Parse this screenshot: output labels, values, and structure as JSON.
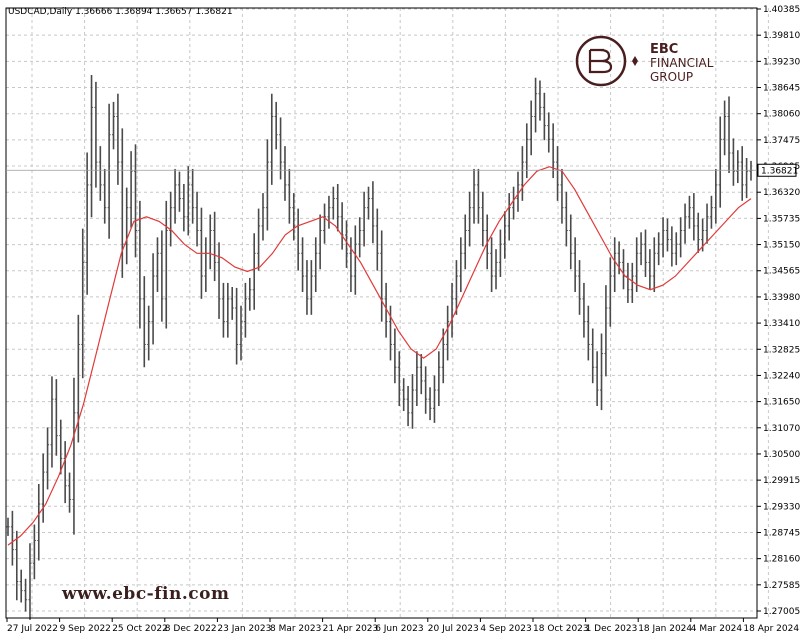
{
  "chart_data": {
    "type": "line",
    "title": "USDCAD,Daily  1.36666  1.36894  1.36657  1.36821",
    "ylim": [
      1.27,
      1.4038
    ],
    "grid": true,
    "y_ticks": [
      "1.40385",
      "1.39810",
      "1.39230",
      "1.38645",
      "1.38060",
      "1.37475",
      "1.36905",
      "1.36320",
      "1.35735",
      "1.35150",
      "1.34565",
      "1.33980",
      "1.33410",
      "1.32825",
      "1.32240",
      "1.31650",
      "1.31070",
      "1.30500",
      "1.29915",
      "1.29330",
      "1.28745",
      "1.28160",
      "1.27585",
      "1.27005"
    ],
    "x_ticks": [
      "27 Jul 2022",
      "9 Sep 2022",
      "25 Oct 2022",
      "8 Dec 2022",
      "23 Jan 2023",
      "8 Mar 2023",
      "21 Apr 2023",
      "6 Jun 2023",
      "20 Jul 2023",
      "4 Sep 2023",
      "18 Oct 2023",
      "1 Dec 2023",
      "18 Jan 2024",
      "4 Mar 2024",
      "18 Apr 2024"
    ],
    "current_price": "1.36821",
    "series": [
      {
        "style": "ohlc-bars",
        "color": "#4a4a4a",
        "values": [
          1.29,
          1.285,
          1.278,
          1.276,
          1.274,
          1.282,
          1.287,
          1.295,
          1.302,
          1.308,
          1.318,
          1.31,
          1.305,
          1.299,
          1.296,
          1.315,
          1.33,
          1.348,
          1.365,
          1.382,
          1.37,
          1.365,
          1.36,
          1.376,
          1.38,
          1.37,
          1.352,
          1.36,
          1.368,
          1.355,
          1.34,
          1.33,
          1.335,
          1.345,
          1.35,
          1.34,
          1.355,
          1.36,
          1.365,
          1.362,
          1.358,
          1.365,
          1.36,
          1.355,
          1.345,
          1.35,
          1.355,
          1.348,
          1.34,
          1.335,
          1.34,
          1.338,
          1.33,
          1.335,
          1.34,
          1.342,
          1.35,
          1.356,
          1.36,
          1.37,
          1.38,
          1.376,
          1.37,
          1.365,
          1.36,
          1.356,
          1.35,
          1.345,
          1.34,
          1.345,
          1.35,
          1.355,
          1.358,
          1.36,
          1.362,
          1.358,
          1.354,
          1.35,
          1.345,
          1.352,
          1.355,
          1.36,
          1.362,
          1.356,
          1.35,
          1.34,
          1.335,
          1.33,
          1.325,
          1.32,
          1.318,
          1.315,
          1.32,
          1.325,
          1.322,
          1.318,
          1.316,
          1.32,
          1.325,
          1.33,
          1.335,
          1.34,
          1.345,
          1.35,
          1.355,
          1.36,
          1.365,
          1.36,
          1.355,
          1.35,
          1.345,
          1.348,
          1.352,
          1.356,
          1.36,
          1.362,
          1.365,
          1.37,
          1.375,
          1.38,
          1.385,
          1.382,
          1.378,
          1.375,
          1.37,
          1.365,
          1.36,
          1.355,
          1.35,
          1.345,
          1.34,
          1.335,
          1.33,
          1.325,
          1.32,
          1.328,
          1.338,
          1.345,
          1.35,
          1.348,
          1.345,
          1.342,
          1.345,
          1.35,
          1.352,
          1.348,
          1.345,
          1.35,
          1.352,
          1.355,
          1.353,
          1.35,
          1.352,
          1.355,
          1.358,
          1.36,
          1.356,
          1.353,
          1.355,
          1.358,
          1.36,
          1.365,
          1.375,
          1.38,
          1.372,
          1.368,
          1.37,
          1.365,
          1.368,
          1.3682
        ]
      },
      {
        "style": "line",
        "color": "#e03a3a",
        "values": [
          1.286,
          1.288,
          1.291,
          1.295,
          1.301,
          1.308,
          1.317,
          1.328,
          1.339,
          1.35,
          1.357,
          1.358,
          1.357,
          1.355,
          1.352,
          1.35,
          1.35,
          1.349,
          1.347,
          1.346,
          1.347,
          1.35,
          1.354,
          1.356,
          1.357,
          1.358,
          1.356,
          1.352,
          1.348,
          1.343,
          1.338,
          1.333,
          1.329,
          1.327,
          1.329,
          1.334,
          1.34,
          1.346,
          1.352,
          1.357,
          1.361,
          1.365,
          1.368,
          1.369,
          1.368,
          1.364,
          1.359,
          1.354,
          1.349,
          1.345,
          1.343,
          1.342,
          1.343,
          1.345,
          1.348,
          1.351,
          1.354,
          1.357,
          1.36,
          1.362
        ]
      }
    ]
  },
  "branding": {
    "logo_name_line1": "EBC",
    "logo_name_line2": "FINANCIAL",
    "logo_name_line3": "GROUP",
    "watermark_url": "www.ebc-fin.com"
  }
}
